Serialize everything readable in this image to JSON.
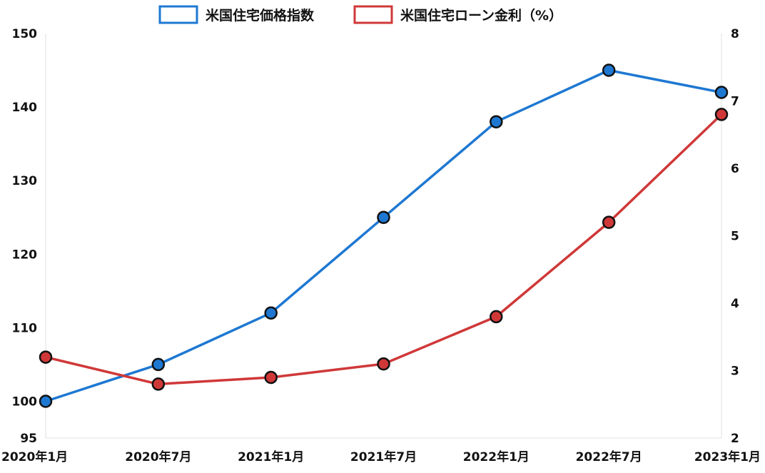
{
  "chart_data": {
    "type": "line",
    "categories": [
      "2020年1月",
      "2020年7月",
      "2021年1月",
      "2021年7月",
      "2022年1月",
      "2022年7月",
      "2023年1月"
    ],
    "series": [
      {
        "name": "米国住宅価格指数",
        "axis": "left",
        "color": "#1e78d2",
        "values": [
          100,
          105,
          112,
          125,
          138,
          145,
          142
        ]
      },
      {
        "name": "米国住宅ローン金利（%）",
        "axis": "right",
        "color": "#d03838",
        "values": [
          3.2,
          2.8,
          2.9,
          3.1,
          3.8,
          5.2,
          6.8
        ]
      }
    ],
    "y_left": {
      "ylim": [
        95,
        150
      ],
      "ticks": [
        95,
        100,
        110,
        120,
        130,
        140,
        150
      ]
    },
    "y_right": {
      "ylim": [
        2,
        8
      ],
      "ticks": [
        2,
        3,
        4,
        5,
        6,
        7,
        8
      ]
    },
    "legend_position": "top-center",
    "grid": false
  }
}
